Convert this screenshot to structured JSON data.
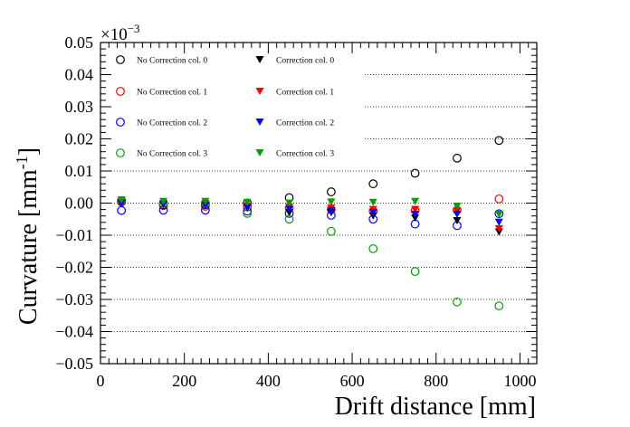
{
  "chart_data": {
    "type": "scatter",
    "xlabel": "Drift distance [mm]",
    "ylabel": "Curvature [mm",
    "ylabel_sup": "-1",
    "ylabel_close": "]",
    "exponent_label": "×10",
    "exponent_sup": "−3",
    "xlim": [
      0,
      1040
    ],
    "ylim": [
      -0.05,
      0.05
    ],
    "x_ticks": [
      0,
      200,
      400,
      600,
      800,
      1000
    ],
    "x_tick_labels": [
      "0",
      "200",
      "400",
      "600",
      "800",
      "1000"
    ],
    "y_ticks": [
      -0.05,
      -0.04,
      -0.03,
      -0.02,
      -0.01,
      0,
      0.01,
      0.02,
      0.03,
      0.04,
      0.05
    ],
    "y_tick_labels": [
      "−0.05",
      "−0.04",
      "−0.03",
      "−0.02",
      "−0.01",
      "0.00",
      "0.01",
      "0.02",
      "0.03",
      "0.04",
      "0.05"
    ],
    "grid": "horizontal dotted",
    "legend_position": "top-left",
    "x": [
      50,
      150,
      250,
      350,
      450,
      550,
      650,
      750,
      850,
      950
    ],
    "series": [
      {
        "name": "No Correction col. 0",
        "marker": "open-circle",
        "color": "#000000",
        "values": [
          0.0005,
          -0.0005,
          -0.0005,
          0.0,
          0.0017,
          0.0035,
          0.006,
          0.0093,
          0.014,
          0.0195
        ]
      },
      {
        "name": "No Correction col. 1",
        "marker": "open-circle",
        "color": "#ff0000",
        "values": [
          0.0003,
          -0.0008,
          -0.001,
          -0.0012,
          -0.0015,
          -0.002,
          -0.0025,
          -0.0023,
          -0.0022,
          0.0013
        ]
      },
      {
        "name": "No Correction col. 2",
        "marker": "open-circle",
        "color": "#0000ff",
        "values": [
          -0.0023,
          -0.0022,
          -0.0022,
          -0.0025,
          -0.0032,
          -0.0038,
          -0.005,
          -0.0065,
          -0.007,
          -0.0033
        ]
      },
      {
        "name": "No Correction col. 3",
        "marker": "open-circle",
        "color": "#00a000",
        "values": [
          0.0008,
          0.0,
          0.0,
          -0.0032,
          -0.005,
          -0.0088,
          -0.0142,
          -0.0213,
          -0.0308,
          -0.032
        ]
      },
      {
        "name": "Correction col. 0",
        "marker": "filled-triangle-down",
        "color": "#000000",
        "values": [
          0.0,
          -0.0005,
          -0.0005,
          -0.0015,
          -0.003,
          -0.003,
          -0.004,
          -0.0047,
          -0.0055,
          -0.009
        ]
      },
      {
        "name": "Correction col. 1",
        "marker": "filled-triangle-down",
        "color": "#ff0000",
        "values": [
          0.0005,
          -0.0002,
          -0.0005,
          -0.001,
          -0.0012,
          -0.0015,
          -0.002,
          -0.002,
          -0.0025,
          -0.008
        ]
      },
      {
        "name": "Correction col. 2",
        "marker": "filled-triangle-down",
        "color": "#0000ff",
        "values": [
          -0.0002,
          -0.0005,
          -0.0008,
          -0.0015,
          -0.002,
          -0.0025,
          -0.003,
          -0.0035,
          -0.0035,
          -0.006
        ]
      },
      {
        "name": "Correction col. 3",
        "marker": "filled-triangle-down",
        "color": "#00a000",
        "values": [
          0.001,
          0.0005,
          0.0005,
          0.0002,
          0.0,
          0.0003,
          0.0002,
          0.0005,
          -0.001,
          -0.0035
        ]
      }
    ]
  }
}
